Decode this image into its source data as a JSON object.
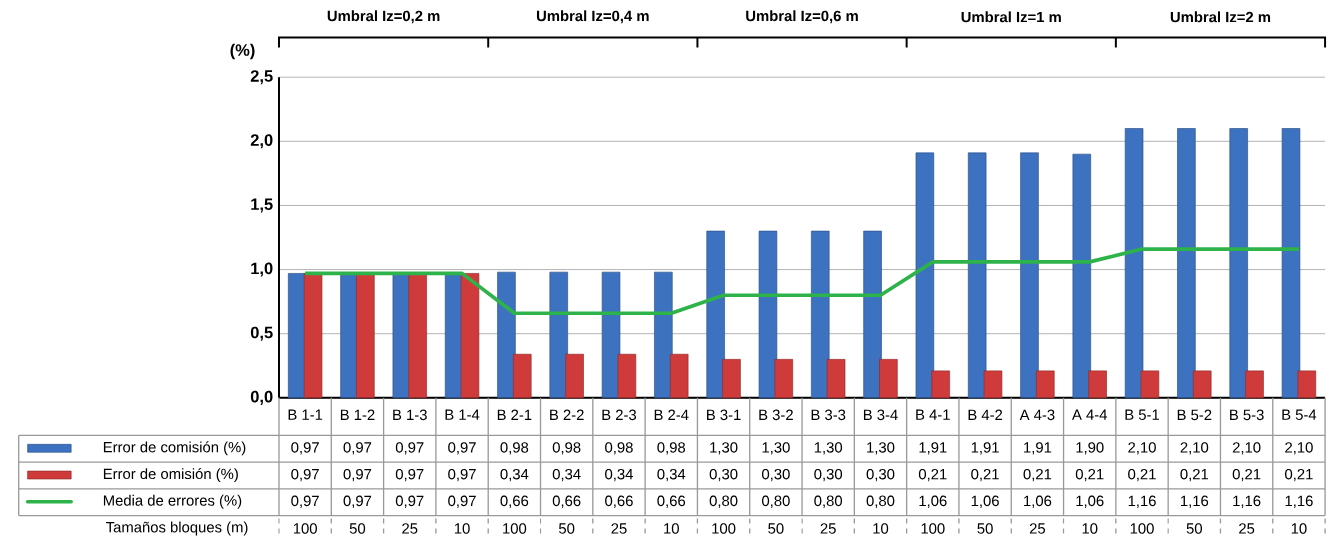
{
  "chart_data": {
    "type": "bar",
    "ylabel": "(%)",
    "categories": [
      "B 1-1",
      "B 1-2",
      "B 1-3",
      "B 1-4",
      "B 2-1",
      "B 2-2",
      "B 2-3",
      "B 2-4",
      "B 3-1",
      "B 3-2",
      "B 3-3",
      "B 3-4",
      "B 4-1",
      "B 4-2",
      "A 4-3",
      "A 4-4",
      "B 5-1",
      "B 5-2",
      "B 5-3",
      "B 5-4"
    ],
    "series": [
      {
        "name": "Error de comisión (%)",
        "color": "#3d72c0",
        "values": [
          0.97,
          0.97,
          0.97,
          0.97,
          0.98,
          0.98,
          0.98,
          0.98,
          1.3,
          1.3,
          1.3,
          1.3,
          1.91,
          1.91,
          1.91,
          1.9,
          2.1,
          2.1,
          2.1,
          2.1
        ],
        "value_labels": [
          "0,97",
          "0,97",
          "0,97",
          "0,97",
          "0,98",
          "0,98",
          "0,98",
          "0,98",
          "1,30",
          "1,30",
          "1,30",
          "1,30",
          "1,91",
          "1,91",
          "1,91",
          "1,90",
          "2,10",
          "2,10",
          "2,10",
          "2,10"
        ]
      },
      {
        "name": "Error de omisión   (%)",
        "color": "#cf3b3a",
        "values": [
          0.97,
          0.97,
          0.97,
          0.97,
          0.34,
          0.34,
          0.34,
          0.34,
          0.3,
          0.3,
          0.3,
          0.3,
          0.21,
          0.21,
          0.21,
          0.21,
          0.21,
          0.21,
          0.21,
          0.21
        ],
        "value_labels": [
          "0,97",
          "0,97",
          "0,97",
          "0,97",
          "0,34",
          "0,34",
          "0,34",
          "0,34",
          "0,30",
          "0,30",
          "0,30",
          "0,30",
          "0,21",
          "0,21",
          "0,21",
          "0,21",
          "0,21",
          "0,21",
          "0,21",
          "0,21"
        ]
      },
      {
        "name": "Media de errores  (%)",
        "type": "line",
        "color": "#2db34a",
        "values": [
          0.97,
          0.97,
          0.97,
          0.97,
          0.66,
          0.66,
          0.66,
          0.66,
          0.8,
          0.8,
          0.8,
          0.8,
          1.06,
          1.06,
          1.06,
          1.06,
          1.16,
          1.16,
          1.16,
          1.16
        ],
        "value_labels": [
          "0,97",
          "0,97",
          "0,97",
          "0,97",
          "0,66",
          "0,66",
          "0,66",
          "0,66",
          "0,80",
          "0,80",
          "0,80",
          "0,80",
          "1,06",
          "1,06",
          "1,06",
          "1,06",
          "1,16",
          "1,16",
          "1,16",
          "1,16"
        ]
      }
    ],
    "ylim": [
      0,
      2.5
    ],
    "yticks": [
      {
        "value": 0,
        "label": "0,0"
      },
      {
        "value": 0.5,
        "label": "0,5"
      },
      {
        "value": 1,
        "label": "1,0"
      },
      {
        "value": 1.5,
        "label": "1,5"
      },
      {
        "value": 2,
        "label": "2,0"
      },
      {
        "value": 2.5,
        "label": "2,5"
      }
    ],
    "grid": "y",
    "legend": "bottom left",
    "marker": "none",
    "line_style": "solid",
    "annotations": [
      "Umbral Iz=0,2 m",
      "Umbral Iz=0,4 m",
      "Umbral Iz=0,6 m",
      "Umbral Iz=1 m",
      "Umbral Iz=2 m",
      "Tamaños bloques (m)",
      "100",
      "50",
      "25",
      "10",
      "100",
      "50",
      "25",
      "10",
      "100",
      "50",
      "25",
      "10",
      "100",
      "50",
      "25",
      "10",
      "100",
      "50",
      "25",
      "10"
    ]
  }
}
